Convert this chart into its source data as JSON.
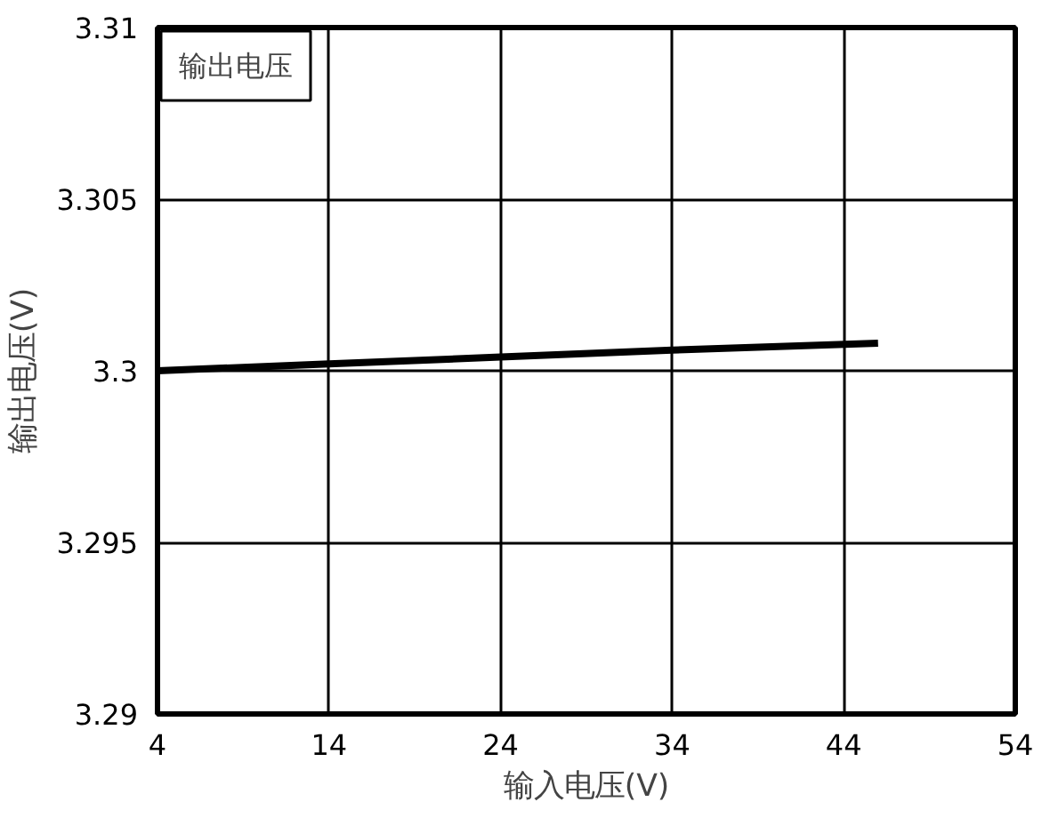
{
  "chart_data": {
    "type": "line",
    "xlabel": "输入电压(V)",
    "ylabel": "输出电压(V)",
    "x": [
      4,
      14,
      24,
      34,
      46
    ],
    "series": [
      {
        "name": "输出电压",
        "color": "#000000",
        "values": [
          3.3,
          3.3002,
          3.3004,
          3.3006,
          3.3008
        ]
      }
    ],
    "xlim": [
      4,
      54
    ],
    "xticks": [
      4,
      14,
      24,
      34,
      44,
      54
    ],
    "ylim": [
      3.29,
      3.31
    ],
    "yticks": [
      3.29,
      3.295,
      3.3,
      3.305,
      3.31
    ],
    "grid": true,
    "legend": "top left",
    "marker": "none",
    "line_style": "solid"
  }
}
